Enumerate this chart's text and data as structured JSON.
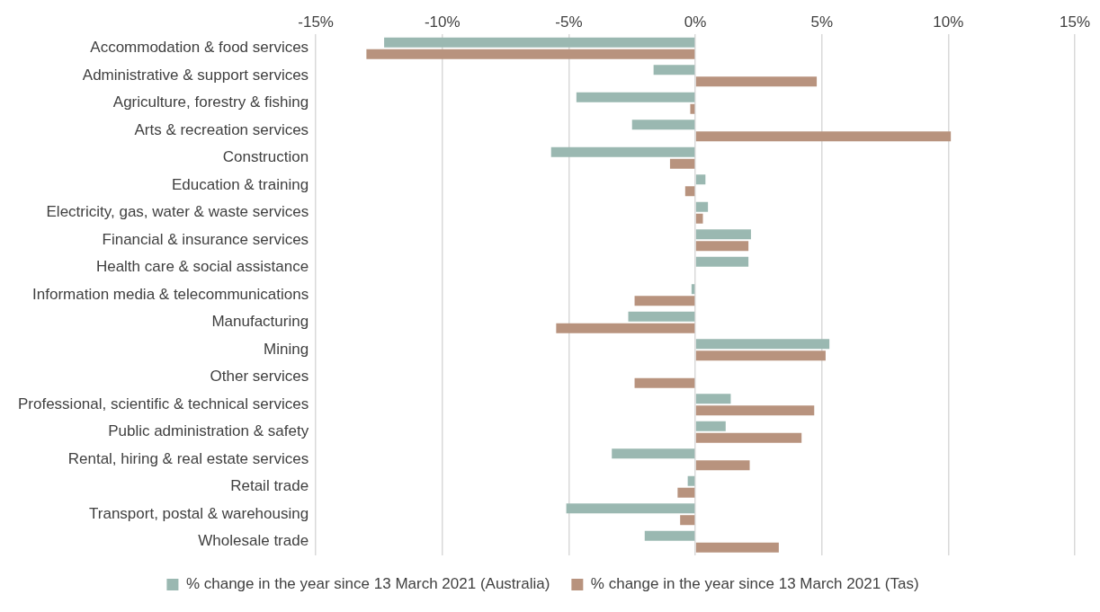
{
  "chart_data": {
    "type": "bar",
    "orientation": "horizontal",
    "categories": [
      "Accommodation & food services",
      "Administrative & support services",
      "Agriculture, forestry & fishing",
      "Arts & recreation services",
      "Construction",
      "Education & training",
      "Electricity, gas, water & waste services",
      "Financial & insurance services",
      "Health care & social assistance",
      "Information media & telecommunications",
      "Manufacturing",
      "Mining",
      "Other services",
      "Professional, scientific & technical services",
      "Public administration & safety",
      "Rental, hiring & real estate services",
      "Retail trade",
      "Transport, postal & warehousing",
      "Wholesale trade"
    ],
    "series": [
      {
        "name": "% change in the year since 13 March 2021 (Australia)",
        "color": "#9ab8b1",
        "values": [
          -12.3,
          -1.65,
          -4.7,
          -2.5,
          -5.7,
          0.4,
          0.5,
          2.2,
          2.1,
          -0.15,
          -2.65,
          5.3,
          0,
          1.4,
          1.2,
          -3.3,
          -0.3,
          -5.1,
          -2.0
        ]
      },
      {
        "name": "% change in the year since 13 March 2021 (Tas)",
        "color": "#b8937e",
        "values": [
          -13.0,
          4.8,
          -0.2,
          10.1,
          -1.0,
          -0.4,
          0.3,
          2.1,
          null,
          -2.4,
          -5.5,
          5.15,
          -2.4,
          4.7,
          4.2,
          2.15,
          -0.7,
          -0.6,
          3.3
        ]
      }
    ],
    "xlim": [
      -15,
      15
    ],
    "xticks": [
      {
        "value": -15,
        "label": "-15%"
      },
      {
        "value": -10,
        "label": "-10%"
      },
      {
        "value": -5,
        "label": "-5%"
      },
      {
        "value": 0,
        "label": "0%"
      },
      {
        "value": 5,
        "label": "5%"
      },
      {
        "value": 10,
        "label": "10%"
      },
      {
        "value": 15,
        "label": "15%"
      }
    ],
    "grid": "x",
    "legend": "bottom"
  }
}
